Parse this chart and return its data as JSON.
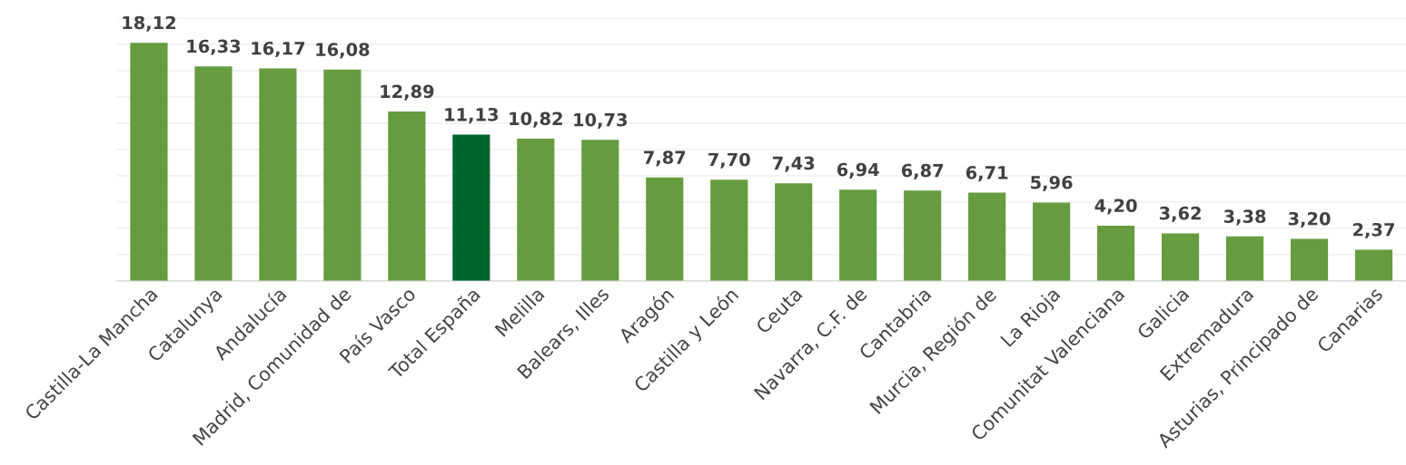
{
  "chart_data": {
    "type": "bar",
    "categories": [
      "Castilla-La Mancha",
      "Catalunya",
      "Andalucía",
      "Madrid, Comunidad de",
      "País Vasco",
      "Total España",
      "Melilla",
      "Balears, Illes",
      "Aragón",
      "Castilla y León",
      "Ceuta",
      "Navarra, C.F. de",
      "Cantabria",
      "Murcia, Región de",
      "La Rioja",
      "Comunitat Valenciana",
      "Galicia",
      "Extremadura",
      "Asturias, Principado de",
      "Canarias"
    ],
    "values": [
      18.12,
      16.33,
      16.17,
      16.08,
      12.89,
      11.13,
      10.82,
      10.73,
      7.87,
      7.7,
      7.43,
      6.94,
      6.87,
      6.71,
      5.96,
      4.2,
      3.62,
      3.38,
      3.2,
      2.37
    ],
    "value_labels": [
      "18,12",
      "16,33",
      "16,17",
      "16,08",
      "12,89",
      "11,13",
      "10,82",
      "10,73",
      "7,87",
      "7,70",
      "7,43",
      "6,94",
      "6,87",
      "6,71",
      "5,96",
      "4,20",
      "3,62",
      "3,38",
      "3,20",
      "2,37"
    ],
    "colors": [
      "#659c3f",
      "#659c3f",
      "#659c3f",
      "#659c3f",
      "#659c3f",
      "#00662e",
      "#659c3f",
      "#659c3f",
      "#659c3f",
      "#659c3f",
      "#659c3f",
      "#659c3f",
      "#659c3f",
      "#659c3f",
      "#659c3f",
      "#659c3f",
      "#659c3f",
      "#659c3f",
      "#659c3f",
      "#659c3f"
    ],
    "yticks": [
      {
        "value": 2,
        "label": null
      },
      {
        "value": 4,
        "label": null
      },
      {
        "value": 6,
        "label": null
      },
      {
        "value": 8,
        "label": null
      },
      {
        "value": 10,
        "label": null
      },
      {
        "value": 12,
        "label": null
      },
      {
        "value": 14,
        "label": null
      },
      {
        "value": 16,
        "label": null
      },
      {
        "value": 18,
        "label": null
      },
      {
        "value": 20,
        "label": null
      }
    ],
    "grid": "y",
    "tick_labels": "x"
  }
}
